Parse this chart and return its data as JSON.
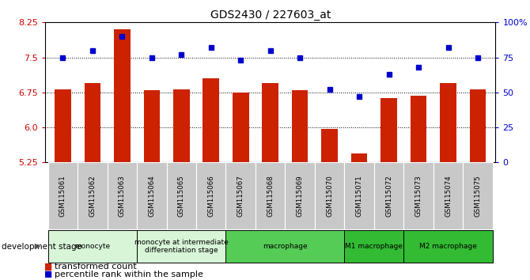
{
  "title": "GDS2430 / 227603_at",
  "samples": [
    "GSM115061",
    "GSM115062",
    "GSM115063",
    "GSM115064",
    "GSM115065",
    "GSM115066",
    "GSM115067",
    "GSM115068",
    "GSM115069",
    "GSM115070",
    "GSM115071",
    "GSM115072",
    "GSM115073",
    "GSM115074",
    "GSM115075"
  ],
  "bar_values": [
    6.82,
    6.95,
    8.1,
    6.8,
    6.82,
    7.05,
    6.75,
    6.95,
    6.8,
    5.97,
    5.45,
    6.62,
    6.68,
    6.95,
    6.82
  ],
  "dot_values": [
    75,
    80,
    90,
    75,
    77,
    82,
    73,
    80,
    75,
    52,
    47,
    63,
    68,
    82,
    75
  ],
  "ylim_left": [
    5.25,
    8.25
  ],
  "ylim_right": [
    0,
    100
  ],
  "yticks_left": [
    5.25,
    6.0,
    6.75,
    7.5,
    8.25
  ],
  "yticks_right": [
    0,
    25,
    50,
    75,
    100
  ],
  "ytick_labels_right": [
    "0",
    "25",
    "50",
    "75",
    "100%"
  ],
  "hlines": [
    6.0,
    6.75,
    7.5
  ],
  "bar_color": "#cc2200",
  "dot_color": "#0000cc",
  "bar_bottom": 5.25,
  "group_defs": [
    {
      "label": "monocyte",
      "start": 0,
      "end": 2,
      "color": "#d8f5d8"
    },
    {
      "label": "monocyte at intermediate\ndifferentiation stage",
      "start": 3,
      "end": 5,
      "color": "#d8f5d8"
    },
    {
      "label": "macrophage",
      "start": 6,
      "end": 9,
      "color": "#55cc55"
    },
    {
      "label": "M1 macrophage",
      "start": 10,
      "end": 11,
      "color": "#33bb33"
    },
    {
      "label": "M2 macrophage",
      "start": 12,
      "end": 14,
      "color": "#33bb33"
    }
  ],
  "dev_stage_label": "development stage",
  "legend_bar_label": "transformed count",
  "legend_dot_label": "percentile rank within the sample",
  "tick_label_color_left": "#cc0000",
  "tick_label_color_right": "#0000cc",
  "bg_color": "#ffffff",
  "sample_box_color": "#c8c8c8",
  "title_fontsize": 10,
  "axis_fontsize": 8,
  "label_fontsize": 7,
  "legend_fontsize": 8
}
